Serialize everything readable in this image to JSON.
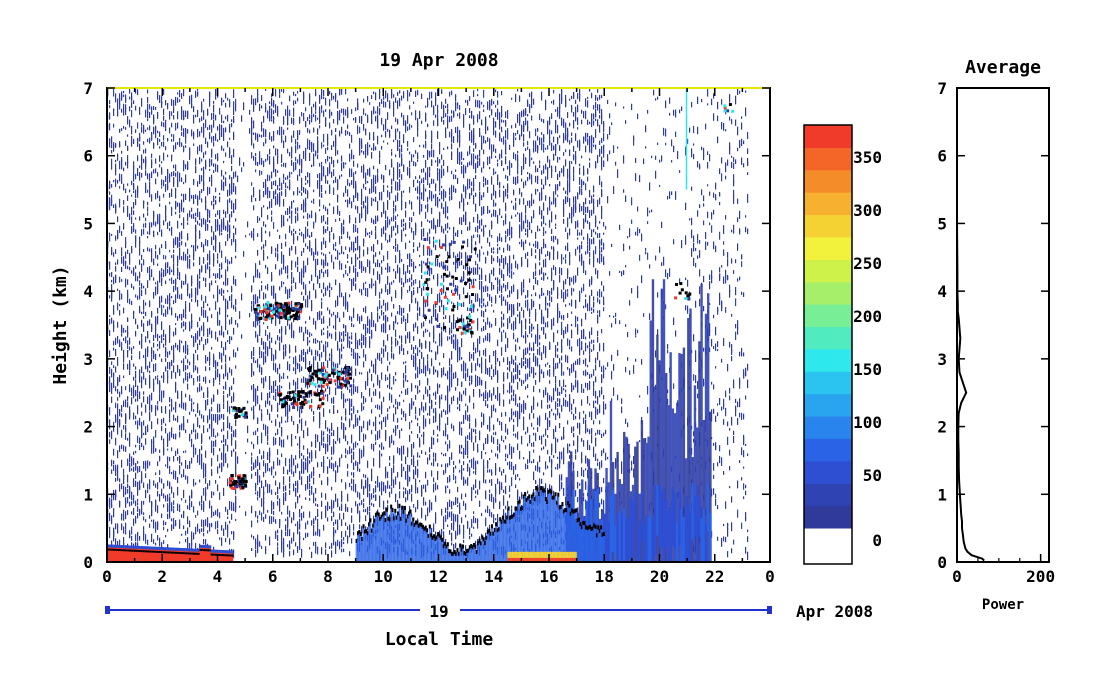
{
  "chart_data": [
    {
      "type": "heatmap",
      "title": "19 Apr 2008",
      "xlabel": "Local Time",
      "ylabel": "Height (km)",
      "x_tick_labels": [
        "0",
        "2",
        "4",
        "6",
        "8",
        "10",
        "12",
        "14",
        "16",
        "18",
        "20",
        "22",
        "0"
      ],
      "x_range": [
        0,
        24
      ],
      "y_ticks": [
        0,
        1,
        2,
        3,
        4,
        5,
        6,
        7
      ],
      "y_range": [
        0,
        7
      ],
      "date_axis": {
        "day_label": "19",
        "month_label": "Apr 2008"
      },
      "colorbar": {
        "tick_labels": [
          "0",
          "50",
          "100",
          "150",
          "200",
          "250",
          "300",
          "350"
        ],
        "range": [
          0,
          380
        ],
        "colors": [
          "#2f3a9a",
          "#3043b3",
          "#2f4fd2",
          "#2b63e6",
          "#2a84ee",
          "#29a5f0",
          "#2bc3f0",
          "#2ee8ee",
          "#50ecc0",
          "#78ee96",
          "#a6ef6a",
          "#cff24a",
          "#f2f23c",
          "#f5d234",
          "#f7b02f",
          "#f58c2a",
          "#f36628",
          "#f03a2a"
        ]
      },
      "features": [
        {
          "desc": "surface layer",
          "x_range": [
            0,
            4.5
          ],
          "height_km": [
            0,
            0.25
          ],
          "value": "high"
        },
        {
          "desc": "cloud layer",
          "x_range": [
            5.3,
            7
          ],
          "height_km": [
            3.6,
            3.85
          ],
          "value": "high"
        },
        {
          "desc": "cloud layer",
          "x_range": [
            6.2,
            8.8
          ],
          "height_km": [
            2.3,
            2.9
          ],
          "value": "high"
        },
        {
          "desc": "cloud layer",
          "x_range": [
            4.4,
            5.0
          ],
          "height_km": [
            1.1,
            1.3
          ],
          "value": "high"
        },
        {
          "desc": "boundary layer top",
          "x_range": [
            9,
            18
          ],
          "height_km": [
            0.2,
            1.1
          ],
          "value": "high"
        },
        {
          "desc": "convective region",
          "x_range": [
            17,
            22
          ],
          "height_km": [
            0,
            4.5
          ],
          "value": "low"
        }
      ]
    },
    {
      "type": "line",
      "title": "Average",
      "xlabel": "Power",
      "ylabel": "",
      "x_ticks": [
        0,
        200
      ],
      "x_range": [
        0,
        220
      ],
      "y_ticks": [
        0,
        1,
        2,
        3,
        4,
        5,
        6,
        7
      ],
      "y_range": [
        0,
        7
      ],
      "series": [
        {
          "x": [
            65,
            60,
            35,
            25,
            20,
            16,
            14,
            12,
            12,
            10,
            9,
            8,
            7,
            6,
            5,
            4,
            4,
            3,
            3,
            4,
            10,
            22,
            6,
            4,
            8,
            4,
            2,
            2,
            1,
            1,
            0
          ],
          "y": [
            0.02,
            0.05,
            0.1,
            0.15,
            0.2,
            0.3,
            0.4,
            0.5,
            0.6,
            0.7,
            0.8,
            0.9,
            1.0,
            1.1,
            1.2,
            1.4,
            1.6,
            1.8,
            2.0,
            2.2,
            2.35,
            2.5,
            2.8,
            3.0,
            3.3,
            3.6,
            3.7,
            3.8,
            4.0,
            4.3,
            5.0
          ]
        }
      ]
    }
  ]
}
